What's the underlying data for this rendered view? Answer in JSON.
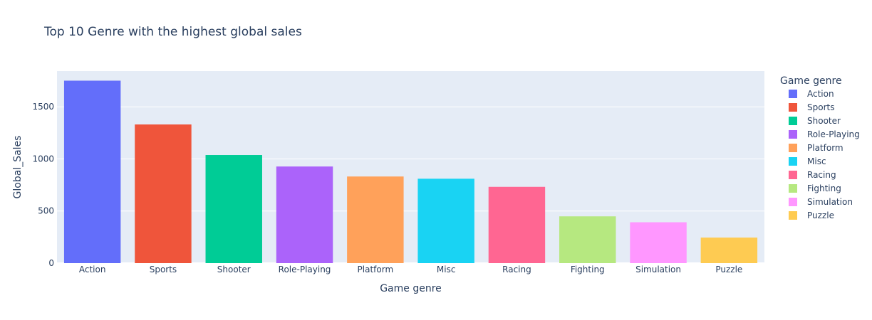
{
  "chart_data": {
    "type": "bar",
    "title": "Top 10 Genre with the highest global sales",
    "xlabel": "Game genre",
    "ylabel": "Global_Sales",
    "categories": [
      "Action",
      "Sports",
      "Shooter",
      "Role-Playing",
      "Platform",
      "Misc",
      "Racing",
      "Fighting",
      "Simulation",
      "Puzzle"
    ],
    "values": [
      1751.18,
      1330.93,
      1037.37,
      927.37,
      831.37,
      809.96,
      732.04,
      448.91,
      392.2,
      244.95
    ],
    "colors": [
      "#636efa",
      "#EF553B",
      "#00cc96",
      "#ab63fa",
      "#FFA15A",
      "#19d3f3",
      "#FF6692",
      "#B6E880",
      "#FF97FF",
      "#FECB52"
    ],
    "ylim": [
      0,
      1843
    ],
    "yticks": [
      0,
      500,
      1000,
      1500
    ],
    "grid": true,
    "legend": {
      "title": "Game genre",
      "position": "right"
    }
  }
}
